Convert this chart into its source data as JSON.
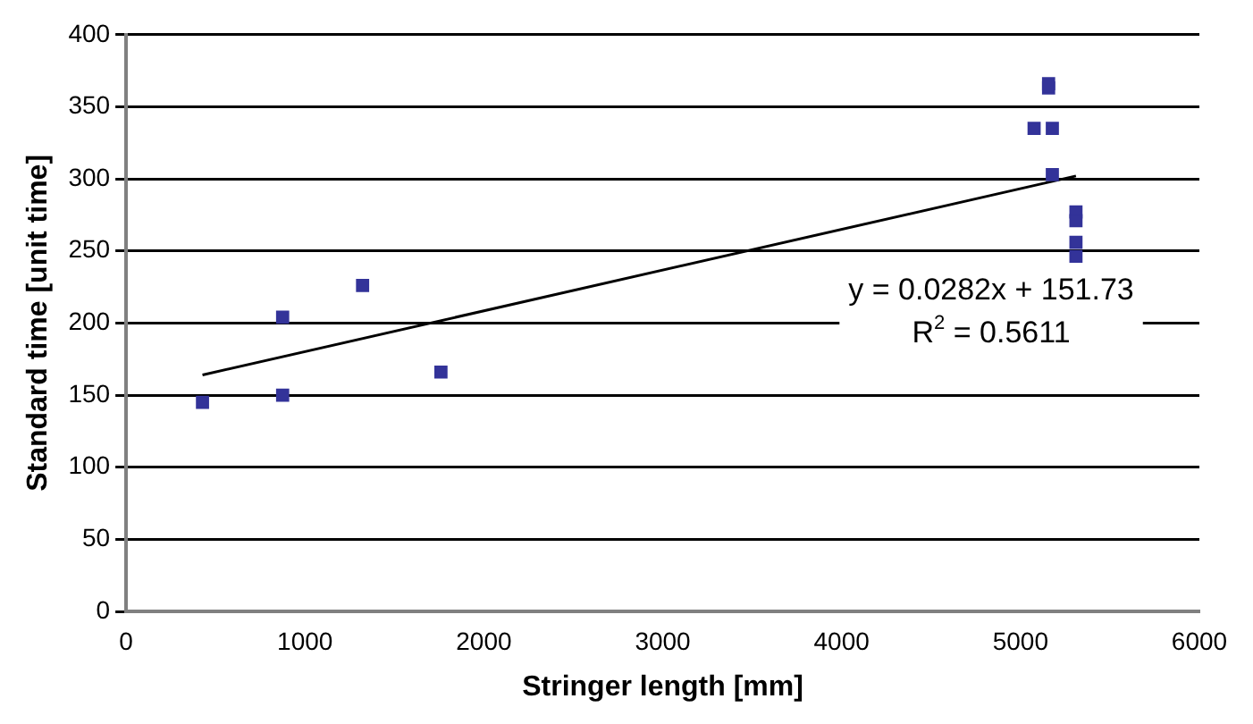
{
  "chart_data": {
    "type": "scatter",
    "xlabel": "Stringer length [mm]",
    "ylabel": "Standard time [unit time]",
    "xlim": [
      0,
      6000
    ],
    "xticks": [
      0,
      1000,
      2000,
      3000,
      4000,
      5000,
      6000
    ],
    "ylim": [
      0,
      400
    ],
    "yticks": [
      0,
      50,
      100,
      150,
      200,
      250,
      300,
      350,
      400
    ],
    "grid": "y",
    "legend": false,
    "marker": "square",
    "series": [
      {
        "color": "#333399",
        "x": [
          427,
          875,
          875,
          1322,
          1760,
          5076,
          5178,
          5157,
          5157,
          5178,
          5310,
          5310,
          5310,
          5310
        ],
        "values": [
          145,
          150,
          204,
          226,
          166,
          335,
          335,
          366,
          363,
          303,
          277,
          271,
          256,
          246
        ]
      },
      {
        "type": "line",
        "color": "#000000",
        "marker": "none",
        "x": [
          427,
          5310
        ],
        "values": [
          164,
          302
        ]
      }
    ],
    "annotations": [
      "y = 0.0282x + 151.73",
      "R$^{2}$ = 0.5611"
    ]
  }
}
